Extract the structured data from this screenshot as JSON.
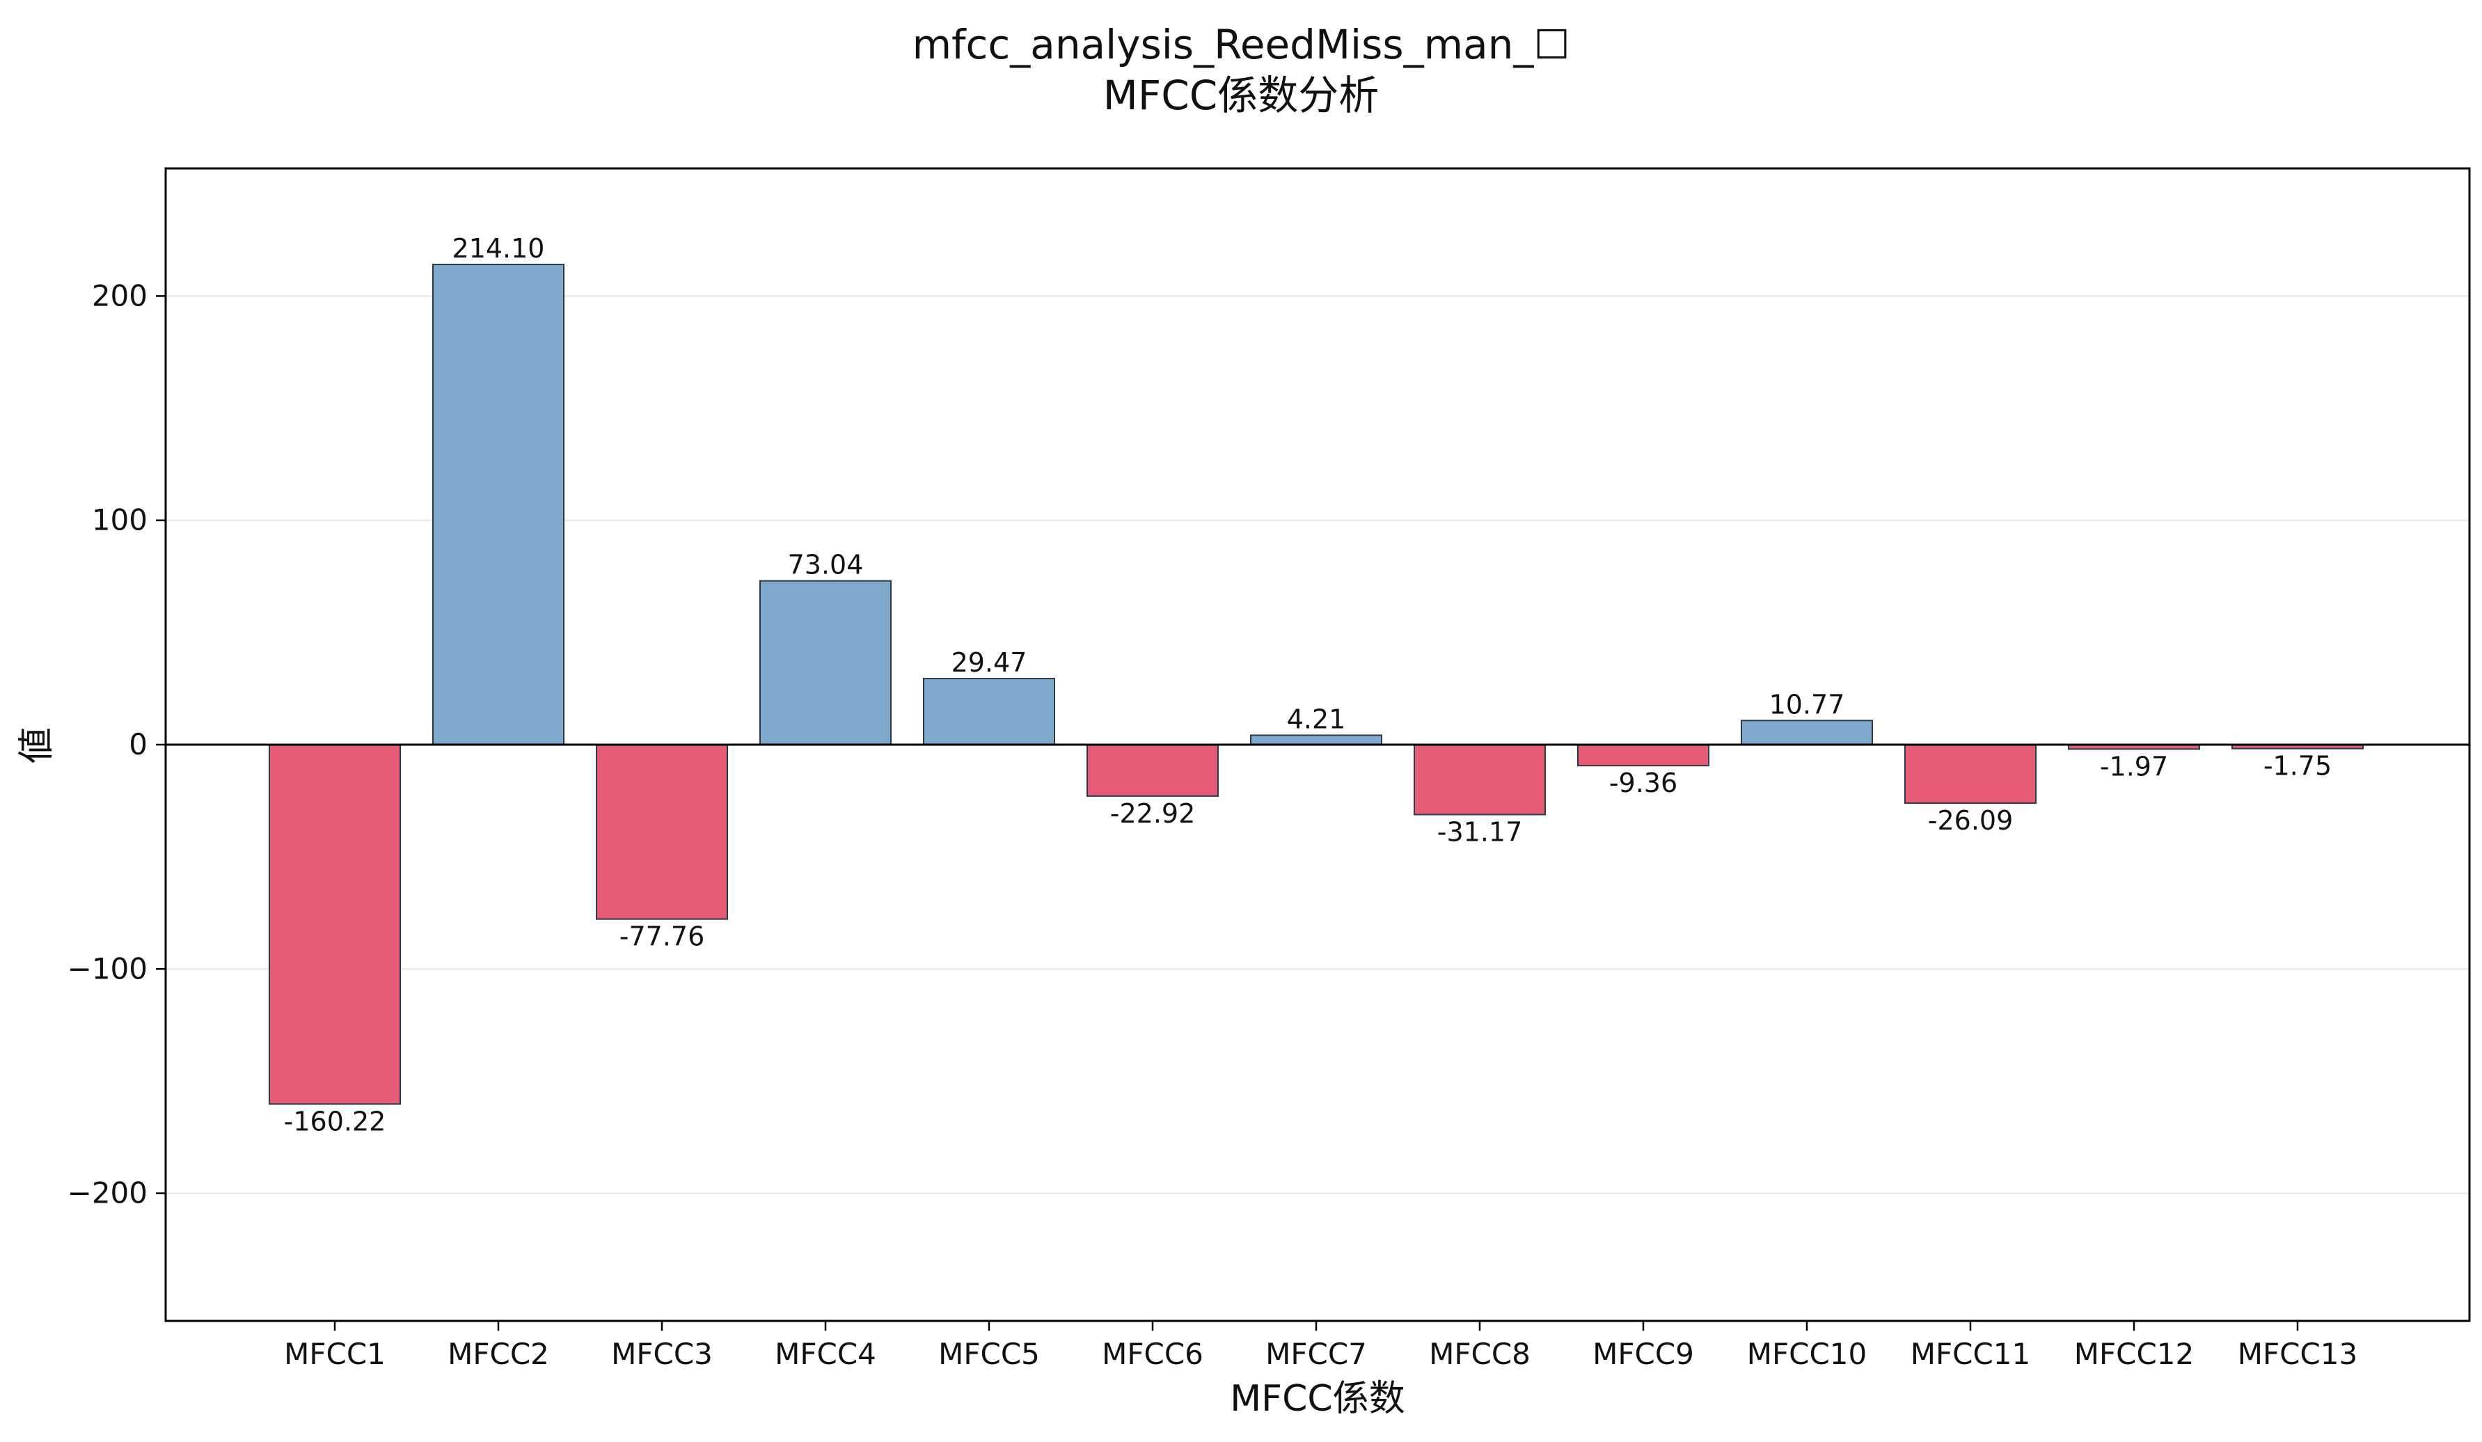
{
  "chart_data": {
    "type": "bar",
    "title_line1": "mfcc_analysis_ReedMiss_man_☐",
    "title_line2": "MFCC係数分析",
    "xlabel": "MFCC係数",
    "ylabel": "値",
    "categories": [
      "MFCC1",
      "MFCC2",
      "MFCC3",
      "MFCC4",
      "MFCC5",
      "MFCC6",
      "MFCC7",
      "MFCC8",
      "MFCC9",
      "MFCC10",
      "MFCC11",
      "MFCC12",
      "MFCC13"
    ],
    "values": [
      -160.22,
      214.1,
      -77.76,
      73.04,
      29.47,
      -22.92,
      4.21,
      -31.17,
      -9.36,
      10.77,
      -26.09,
      -1.97,
      -1.75
    ],
    "value_labels": [
      "-160.22",
      "214.10",
      "-77.76",
      "73.04",
      "29.47",
      "-22.92",
      "4.21",
      "-31.17",
      "-9.36",
      "10.77",
      "-26.09",
      "-1.97",
      "-1.75"
    ],
    "ylim": [
      -256.9,
      256.9
    ],
    "yticks": [
      -200,
      -100,
      0,
      100,
      200
    ],
    "ytick_labels": [
      "−200",
      "−100",
      "0",
      "100",
      "200"
    ],
    "grid": "horizontal",
    "legend": "none",
    "colors": {
      "positive": "#7ea8cc",
      "negative": "#e65b75",
      "edge": "#2b3a4a",
      "zero_line": "#000000",
      "grid": "#e6e6e6"
    }
  }
}
